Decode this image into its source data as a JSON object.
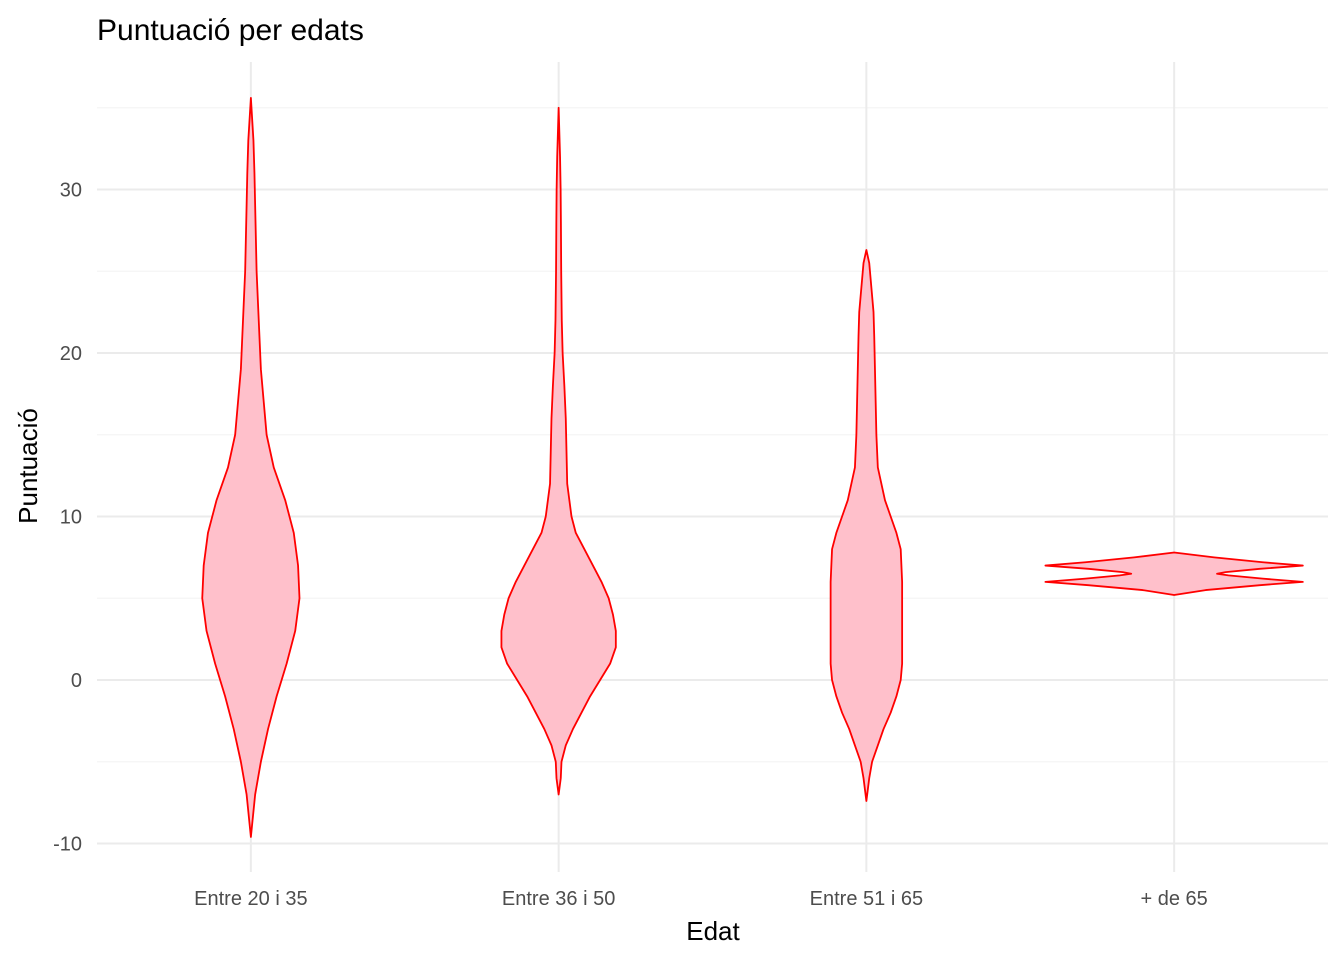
{
  "chart_data": {
    "type": "violin",
    "title": "Puntuació per edats",
    "xlabel": "Edat",
    "ylabel": "Puntuació",
    "categories": [
      "Entre 20 i 35",
      "Entre 36 i 50",
      "Entre 51 i 65",
      "+ de 65"
    ],
    "yticks": [
      -10,
      0,
      10,
      20,
      30
    ],
    "ylim": [
      -12,
      37
    ],
    "grid": true,
    "fill_color": "#ffc0cb",
    "stroke_color": "#ff0000",
    "series": [
      {
        "category": "Entre 20 i 35",
        "profile": [
          [
            -9.6,
            0.0
          ],
          [
            -7,
            0.03
          ],
          [
            -5,
            0.07
          ],
          [
            -3,
            0.12
          ],
          [
            -1,
            0.18
          ],
          [
            1,
            0.25
          ],
          [
            3,
            0.31
          ],
          [
            5,
            0.34
          ],
          [
            7,
            0.33
          ],
          [
            9,
            0.3
          ],
          [
            11,
            0.24
          ],
          [
            13,
            0.16
          ],
          [
            15,
            0.11
          ],
          [
            17,
            0.09
          ],
          [
            19,
            0.07
          ],
          [
            21,
            0.06
          ],
          [
            23,
            0.05
          ],
          [
            25,
            0.04
          ],
          [
            27,
            0.035
          ],
          [
            29,
            0.03
          ],
          [
            31,
            0.025
          ],
          [
            33,
            0.018
          ],
          [
            35.6,
            0.0
          ]
        ]
      },
      {
        "category": "Entre 36 i 50",
        "profile": [
          [
            -7.0,
            0.0
          ],
          [
            -6,
            0.015
          ],
          [
            -5,
            0.02
          ],
          [
            -4,
            0.05
          ],
          [
            -3,
            0.1
          ],
          [
            -2,
            0.16
          ],
          [
            -1,
            0.22
          ],
          [
            0,
            0.29
          ],
          [
            1,
            0.36
          ],
          [
            2,
            0.4
          ],
          [
            3,
            0.4
          ],
          [
            4,
            0.38
          ],
          [
            5,
            0.35
          ],
          [
            6,
            0.3
          ],
          [
            7,
            0.24
          ],
          [
            8,
            0.18
          ],
          [
            9,
            0.12
          ],
          [
            10,
            0.09
          ],
          [
            12,
            0.06
          ],
          [
            14,
            0.055
          ],
          [
            16,
            0.05
          ],
          [
            18,
            0.04
          ],
          [
            20,
            0.028
          ],
          [
            22,
            0.022
          ],
          [
            25,
            0.018
          ],
          [
            28,
            0.016
          ],
          [
            30,
            0.014
          ],
          [
            32,
            0.01
          ],
          [
            35,
            0.0
          ]
        ]
      },
      {
        "category": "Entre 51 i 65",
        "profile": [
          [
            -7.4,
            0.0
          ],
          [
            -6,
            0.02
          ],
          [
            -5,
            0.04
          ],
          [
            -4,
            0.08
          ],
          [
            -3,
            0.12
          ],
          [
            -2,
            0.17
          ],
          [
            -1,
            0.21
          ],
          [
            0,
            0.24
          ],
          [
            1,
            0.25
          ],
          [
            2,
            0.25
          ],
          [
            4,
            0.25
          ],
          [
            6,
            0.25
          ],
          [
            8,
            0.24
          ],
          [
            9,
            0.21
          ],
          [
            10,
            0.17
          ],
          [
            11,
            0.13
          ],
          [
            13,
            0.08
          ],
          [
            15,
            0.07
          ],
          [
            17,
            0.065
          ],
          [
            19,
            0.06
          ],
          [
            21,
            0.055
          ],
          [
            22.5,
            0.05
          ],
          [
            24,
            0.035
          ],
          [
            25.5,
            0.02
          ],
          [
            26.3,
            0.0
          ]
        ]
      },
      {
        "category": "+ de 65",
        "profile": [
          [
            5.2,
            0.0
          ],
          [
            5.5,
            0.22
          ],
          [
            5.8,
            0.6
          ],
          [
            6.0,
            0.9
          ],
          [
            6.2,
            0.62
          ],
          [
            6.4,
            0.38
          ],
          [
            6.5,
            0.3
          ],
          [
            6.6,
            0.36
          ],
          [
            6.8,
            0.6
          ],
          [
            7.0,
            0.9
          ],
          [
            7.2,
            0.62
          ],
          [
            7.5,
            0.28
          ],
          [
            7.8,
            0.0
          ]
        ]
      }
    ]
  }
}
